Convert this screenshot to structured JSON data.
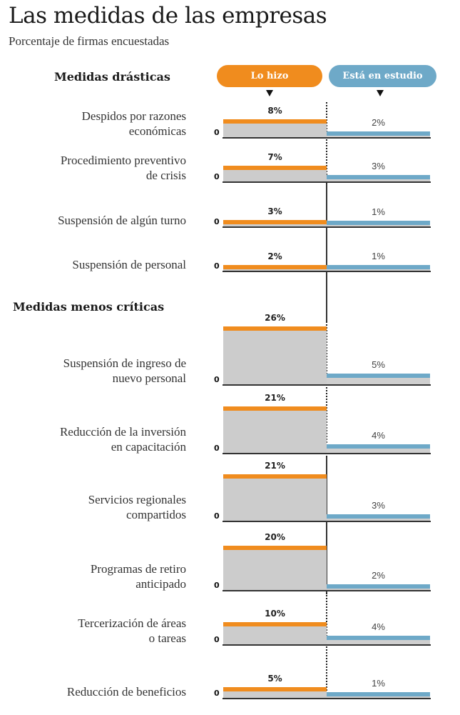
{
  "header": {
    "title": "Las medidas de las empresas",
    "subtitle": "Porcentaje de firmas encuestadas"
  },
  "legend": {
    "did_label": "Lo hizo",
    "studying_label": "Está en estudio",
    "did_color": "#f08c1e",
    "studying_color": "#6ea9c8",
    "fill_color": "#cccccc"
  },
  "zero_label": "0",
  "chart_data": {
    "type": "bar",
    "title": "Las medidas de las empresas",
    "subtitle": "Porcentaje de firmas encuestadas",
    "xlabel": "",
    "ylabel": "Porcentaje de firmas encuestadas",
    "legend": [
      "Lo hizo",
      "Está en estudio"
    ],
    "legend_position": "top",
    "groups": [
      {
        "name": "Medidas drásticas",
        "categories": [
          "Despidos por razones económicas",
          "Procedimiento preventivo de crisis",
          "Suspensión de algún turno",
          "Suspensión de personal"
        ],
        "label_lines": [
          [
            "Despidos por razones",
            "económicas"
          ],
          [
            "Procedimiento preventivo",
            "de crisis"
          ],
          [
            "Suspensión de algún turno"
          ],
          [
            "Suspensión de personal"
          ]
        ],
        "series": [
          {
            "name": "Lo hizo",
            "values": [
              8,
              7,
              3,
              2
            ],
            "labels": [
              "8%",
              "7%",
              "3%",
              "2%"
            ]
          },
          {
            "name": "Está en estudio",
            "values": [
              2,
              3,
              1,
              1
            ],
            "labels": [
              "2%",
              "3%",
              "1%",
              "1%"
            ]
          }
        ]
      },
      {
        "name": "Medidas menos críticas",
        "categories": [
          "Suspensión de ingreso de nuevo personal",
          "Reducción de la inversión en capacitación",
          "Servicios regionales compartidos",
          "Programas de retiro anticipado",
          "Tercerización de áreas o tareas",
          "Reducción de beneficios"
        ],
        "label_lines": [
          [
            "Suspensión de ingreso de",
            "nuevo personal"
          ],
          [
            "Reducción de la inversión",
            "en capacitación"
          ],
          [
            "Servicios regionales",
            "compartidos"
          ],
          [
            "Programas de retiro",
            "anticipado"
          ],
          [
            "Tercerización de áreas",
            "o tareas"
          ],
          [
            "Reducción de beneficios"
          ]
        ],
        "series": [
          {
            "name": "Lo hizo",
            "values": [
              26,
              21,
              21,
              20,
              10,
              5
            ],
            "labels": [
              "26%",
              "21%",
              "21%",
              "20%",
              "10%",
              "5%"
            ]
          },
          {
            "name": "Está en estudio",
            "values": [
              5,
              4,
              3,
              2,
              4,
              1
            ],
            "labels": [
              "5%",
              "4%",
              "3%",
              "2%",
              "4%",
              "1%"
            ]
          }
        ]
      }
    ]
  }
}
